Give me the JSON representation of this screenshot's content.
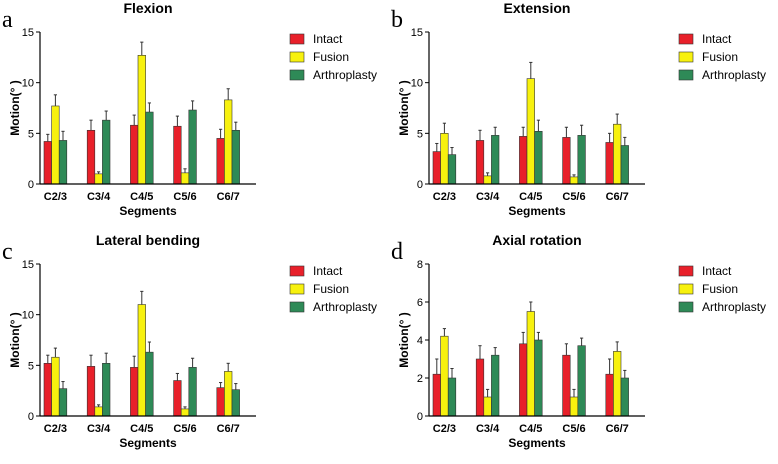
{
  "chart_data": [
    {
      "type": "bar",
      "panel": "a",
      "title": "Flexion",
      "xlabel": "Segments",
      "ylabel": "Motion(° )",
      "categories": [
        "C2/3",
        "C3/4",
        "C4/5",
        "C5/6",
        "C6/7"
      ],
      "ylim": [
        0,
        15
      ],
      "yticks": [
        "0",
        "5",
        "10",
        "15"
      ],
      "ytick_values": [
        0,
        5,
        10,
        15
      ],
      "legend_position": "top-right",
      "series": [
        {
          "name": "Intact",
          "color": "#e8202a",
          "values": [
            4.2,
            5.3,
            5.8,
            5.7,
            4.5
          ],
          "errors": [
            0.7,
            1.0,
            1.0,
            1.0,
            0.9
          ]
        },
        {
          "name": "Fusion",
          "color": "#f7f10e",
          "values": [
            7.7,
            1.0,
            12.7,
            1.1,
            8.3
          ],
          "errors": [
            1.1,
            0.2,
            1.3,
            0.4,
            1.1
          ]
        },
        {
          "name": "Arthroplasty",
          "color": "#2e8a57",
          "values": [
            4.3,
            6.3,
            7.1,
            7.3,
            5.3
          ],
          "errors": [
            0.9,
            0.9,
            0.9,
            0.9,
            0.8
          ]
        }
      ]
    },
    {
      "type": "bar",
      "panel": "b",
      "title": "Extension",
      "xlabel": "Segments",
      "ylabel": "Motion(° )",
      "categories": [
        "C2/3",
        "C3/4",
        "C4/5",
        "C5/6",
        "C6/7"
      ],
      "ylim": [
        0,
        15
      ],
      "yticks": [
        "0",
        "5",
        "10",
        "15"
      ],
      "ytick_values": [
        0,
        5,
        10,
        15
      ],
      "legend_position": "top-right",
      "series": [
        {
          "name": "Intact",
          "color": "#e8202a",
          "values": [
            3.2,
            4.3,
            4.7,
            4.6,
            4.1
          ],
          "errors": [
            0.8,
            1.0,
            0.9,
            1.0,
            0.9
          ]
        },
        {
          "name": "Fusion",
          "color": "#f7f10e",
          "values": [
            5.0,
            0.8,
            10.4,
            0.7,
            5.9
          ],
          "errors": [
            1.0,
            0.3,
            1.6,
            0.2,
            1.0
          ]
        },
        {
          "name": "Arthroplasty",
          "color": "#2e8a57",
          "values": [
            2.9,
            4.8,
            5.2,
            4.8,
            3.8
          ],
          "errors": [
            0.7,
            0.8,
            1.1,
            1.0,
            0.8
          ]
        }
      ]
    },
    {
      "type": "bar",
      "panel": "c",
      "title": "Lateral bending",
      "xlabel": "Segments",
      "ylabel": "Motion(° )",
      "categories": [
        "C2/3",
        "C3/4",
        "C4/5",
        "C5/6",
        "C6/7"
      ],
      "ylim": [
        0,
        15
      ],
      "yticks": [
        "0",
        "5",
        "10",
        "15"
      ],
      "ytick_values": [
        0,
        5,
        10,
        15
      ],
      "legend_position": "top-right",
      "series": [
        {
          "name": "Intact",
          "color": "#e8202a",
          "values": [
            5.2,
            4.9,
            4.8,
            3.5,
            2.8
          ],
          "errors": [
            0.8,
            1.1,
            1.1,
            0.7,
            0.5
          ]
        },
        {
          "name": "Fusion",
          "color": "#f7f10e",
          "values": [
            5.8,
            0.9,
            11.0,
            0.7,
            4.4
          ],
          "errors": [
            0.9,
            0.2,
            1.3,
            0.2,
            0.8
          ]
        },
        {
          "name": "Arthroplasty",
          "color": "#2e8a57",
          "values": [
            2.7,
            5.2,
            6.3,
            4.8,
            2.6
          ],
          "errors": [
            0.7,
            1.0,
            1.0,
            0.9,
            0.6
          ]
        }
      ]
    },
    {
      "type": "bar",
      "panel": "d",
      "title": "Axial rotation",
      "xlabel": "Segments",
      "ylabel": "Motion(° )",
      "categories": [
        "C2/3",
        "C3/4",
        "C4/5",
        "C5/6",
        "C6/7"
      ],
      "ylim": [
        0,
        8
      ],
      "yticks": [
        "0",
        "2",
        "4",
        "6",
        "8"
      ],
      "ytick_values": [
        0,
        2,
        4,
        6,
        8
      ],
      "legend_position": "top-right",
      "series": [
        {
          "name": "Intact",
          "color": "#e8202a",
          "values": [
            2.2,
            3.0,
            3.8,
            3.2,
            2.2
          ],
          "errors": [
            0.8,
            0.7,
            0.6,
            0.6,
            0.8
          ]
        },
        {
          "name": "Fusion",
          "color": "#f7f10e",
          "values": [
            4.2,
            1.0,
            5.5,
            1.0,
            3.4
          ],
          "errors": [
            0.4,
            0.4,
            0.5,
            0.4,
            0.5
          ]
        },
        {
          "name": "Arthroplasty",
          "color": "#2e8a57",
          "values": [
            2.0,
            3.2,
            4.0,
            3.7,
            2.0
          ],
          "errors": [
            0.5,
            0.4,
            0.4,
            0.4,
            0.4
          ]
        }
      ]
    }
  ]
}
